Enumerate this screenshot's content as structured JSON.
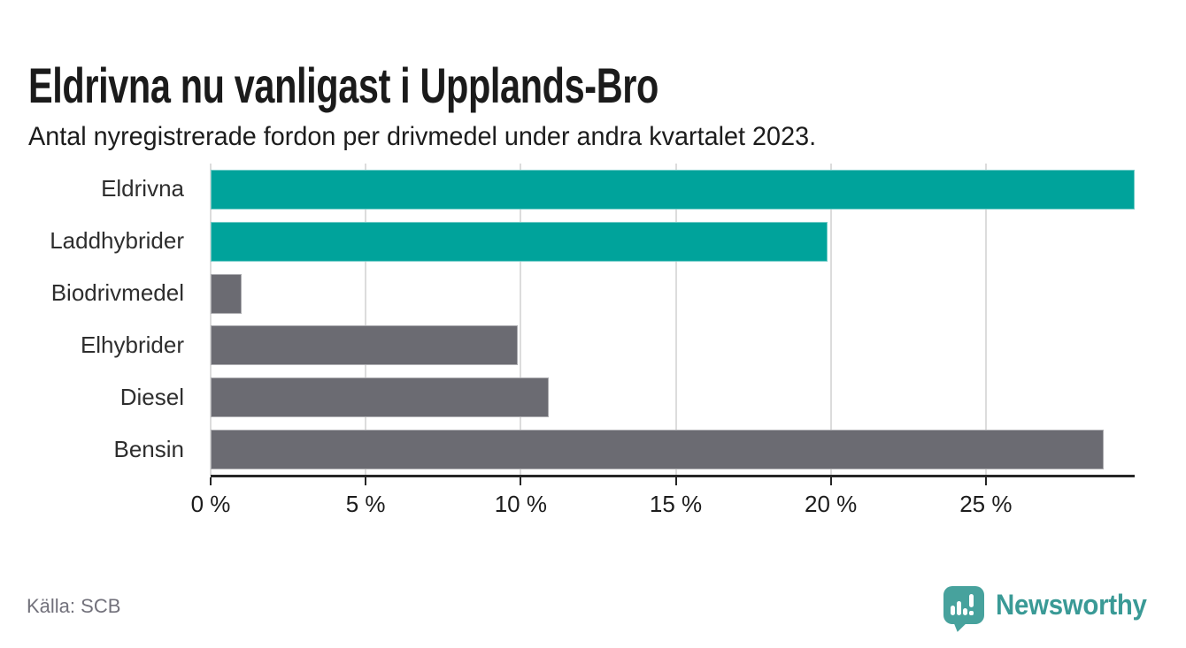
{
  "chart_data": {
    "type": "bar",
    "orientation": "horizontal",
    "title": "Eldrivna nu vanligast i Upplands-Bro",
    "subtitle": "Antal nyregistrerade fordon per drivmedel under andra kvartalet 2023.",
    "categories": [
      "Eldrivna",
      "Laddhybrider",
      "Biodrivmedel",
      "Elhybrider",
      "Diesel",
      "Bensin"
    ],
    "values": [
      29.8,
      19.9,
      1.0,
      9.9,
      10.9,
      28.8
    ],
    "unit": "%",
    "xlabel": "",
    "ylabel": "",
    "xlim": [
      0,
      29.8
    ],
    "tick_values": [
      0,
      5,
      10,
      15,
      20,
      25
    ],
    "tick_labels": [
      "0 %",
      "5 %",
      "10 %",
      "15 %",
      "20 %",
      "25 %"
    ],
    "grid": true,
    "legend_position": "none",
    "bar_colors": [
      "#00a39b",
      "#00a39b",
      "#6b6b72",
      "#6b6b72",
      "#6b6b72",
      "#6b6b72"
    ]
  },
  "colors": {
    "highlight": "#00a39b",
    "default_bar": "#6b6b72",
    "axis": "#262626",
    "grid": "#dcdcdc",
    "text": "#1b1b1b",
    "source_text": "#72717b",
    "logo_teal": "#47a29d",
    "logo_text_teal": "#3a9a96",
    "background": "#ffffff"
  },
  "footer": {
    "source": "Källa: SCB",
    "brand": "Newsworthy"
  },
  "icons": {
    "brand_icon": "newsworthy-speech-bubble-bar-chart-icon"
  }
}
